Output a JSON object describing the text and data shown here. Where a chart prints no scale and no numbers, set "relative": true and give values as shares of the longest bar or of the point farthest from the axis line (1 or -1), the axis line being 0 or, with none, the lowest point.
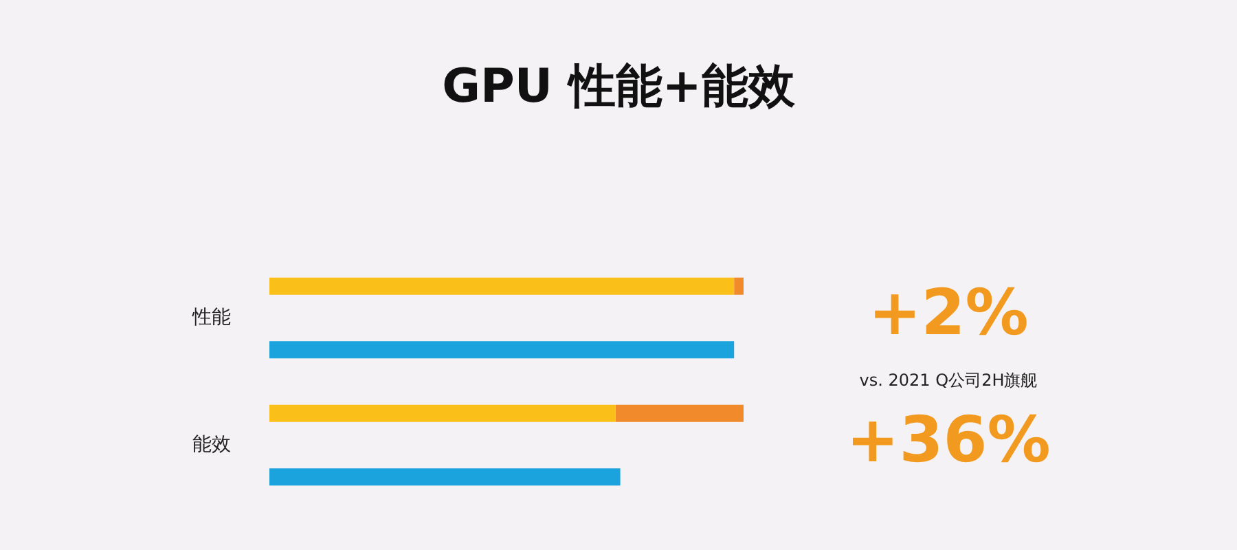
{
  "chart_data": {
    "type": "bar",
    "title": "GPU 性能+能效",
    "orientation": "horizontal",
    "relative": true,
    "stacked": true,
    "categories": [
      "性能",
      null,
      "能效",
      null
    ],
    "series": [
      {
        "color": "#fbbf1a",
        "values": [
          0.98,
          null,
          0.73,
          null
        ]
      },
      {
        "color": "#f08a2a",
        "values": [
          0.02,
          null,
          0.27,
          null
        ]
      },
      {
        "color": "#1aa3dc",
        "values": [
          null,
          0.98,
          null,
          0.74
        ]
      }
    ],
    "annotations": [
      "+2%",
      "vs. 2021 Q公司2H旗舰",
      "+36%"
    ]
  }
}
